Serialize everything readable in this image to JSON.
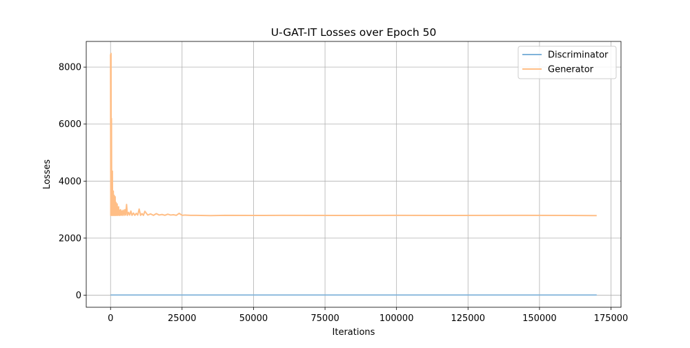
{
  "chart_data": {
    "type": "line",
    "title": "U-GAT-IT Losses over Epoch 50",
    "xlabel": "Iterations",
    "ylabel": "Losses",
    "xlim": [
      -8500,
      178500
    ],
    "ylim": [
      -425,
      8900
    ],
    "xticks": [
      0,
      25000,
      50000,
      75000,
      100000,
      125000,
      150000,
      175000
    ],
    "xtick_labels": [
      "0",
      "25000",
      "50000",
      "75000",
      "100000",
      "125000",
      "150000",
      "175000"
    ],
    "yticks": [
      0,
      2000,
      4000,
      6000,
      8000
    ],
    "ytick_labels": [
      "0",
      "2000",
      "4000",
      "6000",
      "8000"
    ],
    "grid": true,
    "legend_position": "top-right",
    "series": [
      {
        "name": "Discriminator",
        "color": "#7fb2d9",
        "x": [
          0,
          170000
        ],
        "y": [
          5,
          5
        ]
      },
      {
        "name": "Generator",
        "color": "#ffbe86",
        "x": [
          0,
          80,
          160,
          240,
          320,
          400,
          480,
          560,
          640,
          720,
          800,
          880,
          960,
          1040,
          1120,
          1200,
          1280,
          1360,
          1440,
          1520,
          1600,
          1680,
          1760,
          1840,
          1920,
          2000,
          2100,
          2200,
          2300,
          2400,
          2500,
          2650,
          2800,
          2950,
          3100,
          3300,
          3500,
          3700,
          3900,
          4100,
          4400,
          4700,
          5000,
          5300,
          5600,
          5900,
          6300,
          6700,
          7100,
          7500,
          8000,
          8500,
          9000,
          9500,
          10000,
          10500,
          11000,
          11500,
          12000,
          13000,
          14000,
          15000,
          16000,
          17000,
          18000,
          19000,
          20000,
          21000,
          22000,
          23000,
          24000,
          25000,
          26000,
          28000,
          30000,
          35000,
          40000,
          50000,
          60000,
          80000,
          100000,
          120000,
          140000,
          160000,
          170000
        ],
        "y": [
          8450,
          2800,
          8480,
          2820,
          6200,
          2800,
          3600,
          2810,
          4350,
          2800,
          3200,
          2800,
          3650,
          2810,
          3100,
          2800,
          3500,
          2800,
          3250,
          2810,
          3450,
          2800,
          3150,
          2800,
          3250,
          2810,
          3050,
          2800,
          3200,
          2800,
          3000,
          2810,
          3100,
          2800,
          2980,
          2800,
          3000,
          2810,
          2950,
          2800,
          2980,
          2800,
          3000,
          2810,
          3180,
          2800,
          2900,
          2810,
          2950,
          2800,
          2880,
          2800,
          2870,
          2810,
          3020,
          2800,
          2860,
          2800,
          2940,
          2810,
          2850,
          2800,
          2860,
          2810,
          2830,
          2800,
          2840,
          2810,
          2820,
          2800,
          2870,
          2800,
          2810,
          2800,
          2800,
          2790,
          2800,
          2795,
          2800,
          2795,
          2800,
          2795,
          2800,
          2795,
          2790
        ]
      }
    ]
  }
}
